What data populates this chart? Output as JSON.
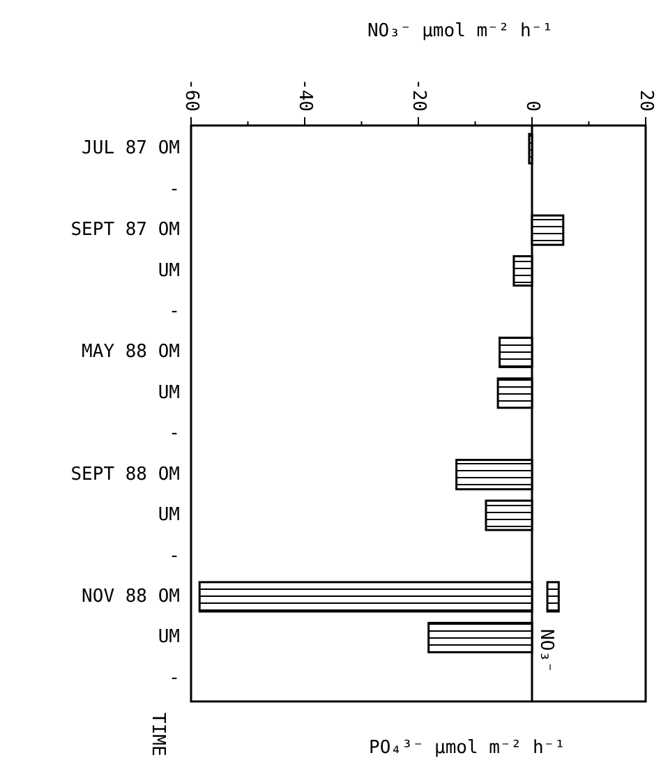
{
  "chart_data": {
    "type": "bar",
    "orientation": "horizontal",
    "xlabel": "NO₃⁻ µmol m⁻² h⁻¹",
    "ylabel": "TIME",
    "categories": [
      "JUL 87 OM",
      "-",
      "SEPT 87 OM",
      "UM",
      "-",
      "MAY 88 OM",
      "UM",
      "-",
      "SEPT 88 OM",
      "UM",
      "-",
      "NOV 88 OM",
      "UM",
      "-"
    ],
    "series": [
      {
        "color": "#000000",
        "values": [
          -0.5,
          null,
          5.5,
          -3.2,
          null,
          -5.7,
          -6,
          null,
          -13.3,
          -8.1,
          null,
          -58.5,
          -18.2,
          null
        ]
      },
      {
        "color": "#000000",
        "base": [
          null,
          null,
          null,
          null,
          null,
          null,
          null,
          null,
          null,
          null,
          null,
          2.7,
          null,
          null
        ],
        "values": [
          null,
          null,
          null,
          null,
          null,
          null,
          null,
          null,
          null,
          null,
          null,
          2,
          null,
          null
        ]
      }
    ],
    "xlim": [
      -60,
      20
    ],
    "xticks": [
      -60,
      {
        "value": -50,
        "label": null
      },
      -40,
      {
        "value": -30,
        "label": null
      },
      -20,
      {
        "value": -10,
        "label": null
      },
      0,
      {
        "value": 10,
        "label": null
      },
      20
    ],
    "annotations": [
      "NO₃⁻",
      "PO₄³⁻ µmol m⁻² h⁻¹"
    ]
  }
}
